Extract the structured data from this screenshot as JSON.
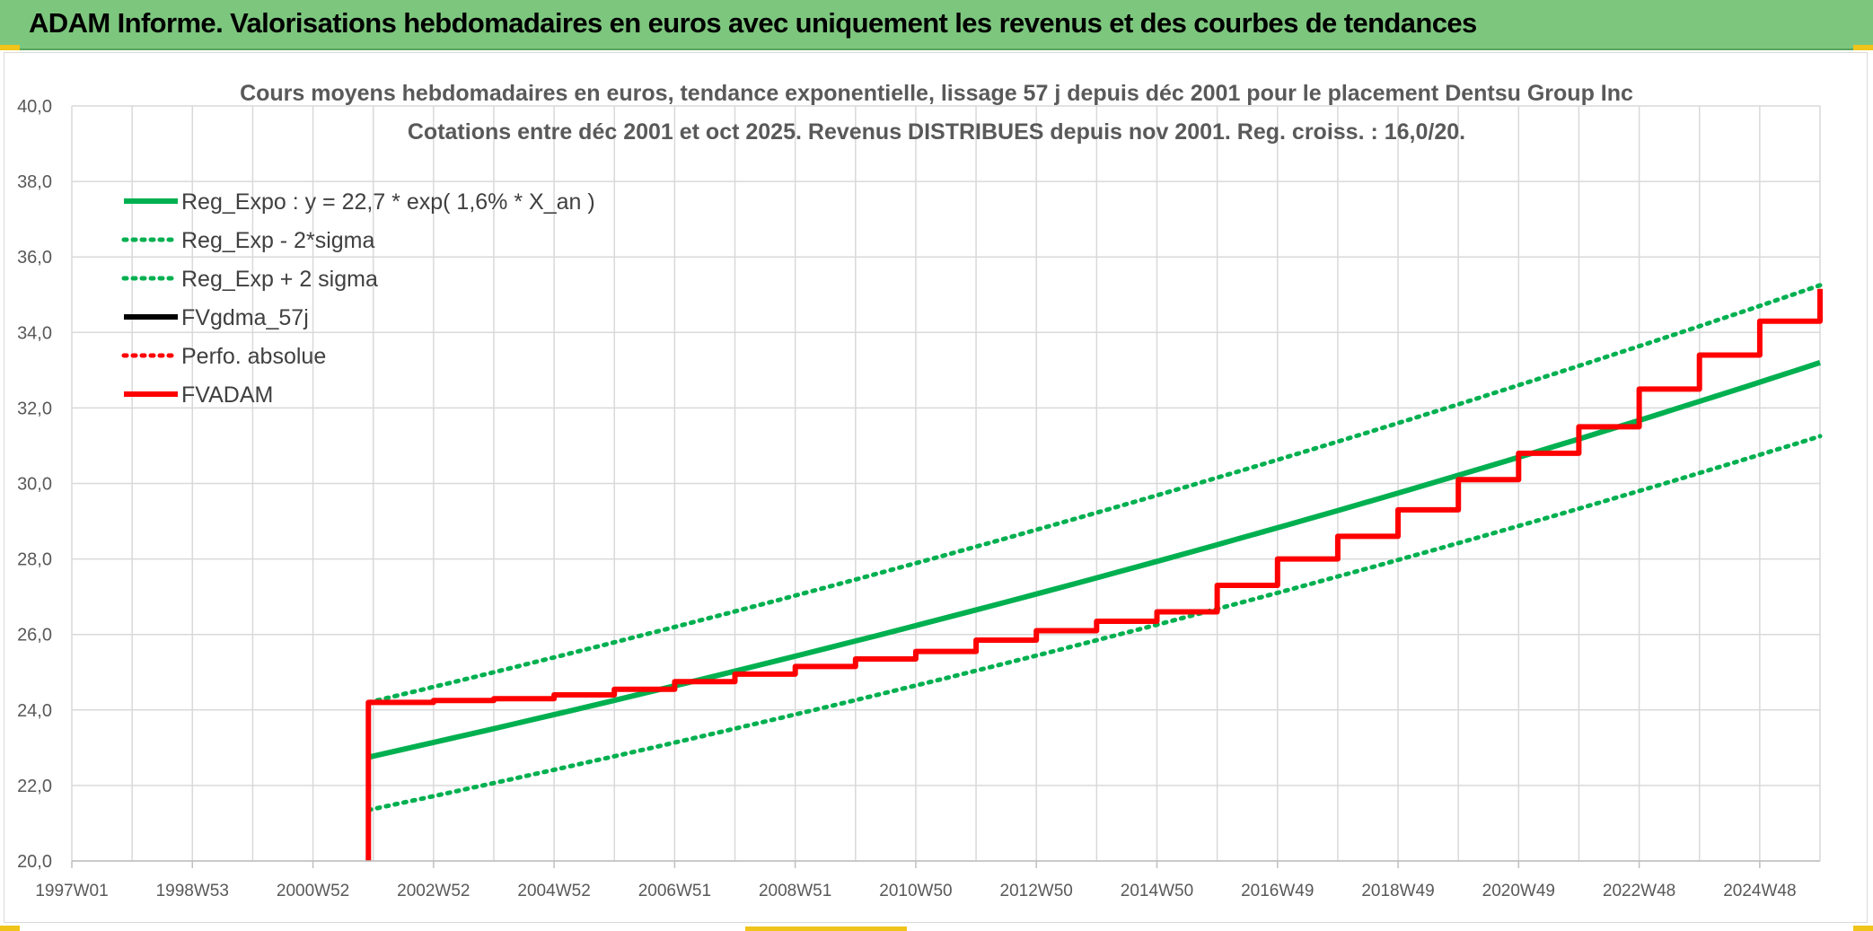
{
  "banner": {
    "title": "ADAM Informe. Valorisations hebdomadaires en euros avec uniquement les revenus et des courbes de tendances"
  },
  "colors": {
    "banner_bg": "#7dc67e",
    "green": "#00b050",
    "red": "#ff0000",
    "black": "#000000",
    "grid": "#d9d9d9"
  },
  "chart_data": {
    "type": "line",
    "title_lines": [
      "Cours moyens hebdomadaires en euros, tendance exponentielle, lissage 57 j depuis déc 2001 pour le placement Dentsu Group Inc",
      "Cotations entre déc 2001 et oct 2025. Revenus DISTRIBUES depuis nov 2001. Reg. croiss. : 16,0/20."
    ],
    "x_tick_labels": [
      "1997W01",
      "1998W53",
      "2000W52",
      "2002W52",
      "2004W52",
      "2006W51",
      "2008W51",
      "2010W50",
      "2012W50",
      "2014W50",
      "2016W49",
      "2018W49",
      "2020W49",
      "2022W48",
      "2024W48"
    ],
    "x_range_years": [
      1997.0,
      2026.0
    ],
    "y_range": [
      20,
      40
    ],
    "y_ticks": [
      "20,0",
      "22,0",
      "24,0",
      "26,0",
      "28,0",
      "30,0",
      "32,0",
      "34,0",
      "36,0",
      "38,0",
      "40,0"
    ],
    "grid": true,
    "legend_position": "top-left",
    "series": [
      {
        "name": "Reg_Expo : y = 22,7 * exp( 1,6% *  X_an )",
        "color": "#00b050",
        "style": "solid",
        "x": [
          2001.92,
          2026.0
        ],
        "y": [
          22.75,
          33.2
        ]
      },
      {
        "name": "Reg_Exp - 2*sigma",
        "color": "#00b050",
        "style": "dotted",
        "x": [
          2001.92,
          2026.0
        ],
        "y": [
          21.35,
          31.25
        ]
      },
      {
        "name": "Reg_Exp + 2 sigma",
        "color": "#00b050",
        "style": "dotted",
        "x": [
          2001.92,
          2026.0
        ],
        "y": [
          24.2,
          35.25
        ]
      },
      {
        "name": "FVgdma_57j",
        "color": "#000000",
        "style": "solid",
        "x": [
          2001.92,
          2003,
          2004,
          2005,
          2006,
          2007,
          2008,
          2009,
          2010,
          2011,
          2012,
          2013,
          2014,
          2015,
          2016,
          2017,
          2018,
          2019,
          2020,
          2021,
          2022,
          2023,
          2024,
          2025,
          2026.0
        ],
        "y": [
          24.2,
          24.25,
          24.3,
          24.4,
          24.55,
          24.75,
          24.95,
          25.15,
          25.35,
          25.55,
          25.85,
          26.1,
          26.35,
          26.6,
          27.3,
          28.0,
          28.6,
          29.3,
          30.1,
          30.8,
          31.5,
          32.5,
          33.4,
          34.3,
          35.15
        ]
      },
      {
        "name": "Perfo. absolue",
        "color": "#ff0000",
        "style": "dotted",
        "x": [],
        "y": []
      },
      {
        "name": "FVADAM",
        "color": "#ff0000",
        "style": "solid",
        "x": [
          2001.92,
          2001.92,
          2003,
          2004,
          2005,
          2006,
          2007,
          2008,
          2009,
          2010,
          2011,
          2012,
          2013,
          2014,
          2015,
          2016,
          2017,
          2018,
          2019,
          2020,
          2021,
          2022,
          2023,
          2024,
          2025,
          2026.0
        ],
        "y": [
          20.0,
          24.2,
          24.25,
          24.3,
          24.4,
          24.55,
          24.75,
          24.95,
          25.15,
          25.35,
          25.55,
          25.85,
          26.1,
          26.35,
          26.6,
          27.3,
          28.0,
          28.6,
          29.3,
          30.1,
          30.8,
          31.5,
          32.5,
          33.4,
          34.3,
          35.15
        ]
      }
    ]
  }
}
